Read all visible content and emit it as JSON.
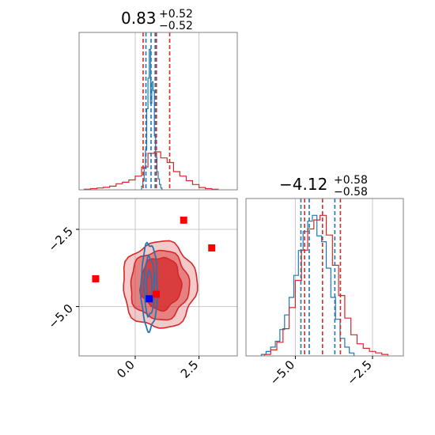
{
  "chart_data": {
    "type": "corner",
    "grid": true,
    "colors": {
      "posterior_a": "#1f77b4",
      "posterior_b": "#d62728",
      "marker_red": "#ff0000",
      "marker_blue": "#0000ff"
    },
    "panels": {
      "param1_hist": {
        "title": {
          "median": "0.83",
          "upper": "+0.52",
          "lower": "−0.52"
        },
        "xlim": [
          -2.2,
          4.0
        ],
        "gridlines_x": [
          0.0,
          2.5
        ],
        "quantile_lines_red": [
          0.31,
          0.83,
          1.35
        ],
        "quantile_lines_blue": [
          0.42,
          0.62,
          0.78
        ],
        "blue_hist": {
          "edges": [
            0.25,
            0.3,
            0.35,
            0.4,
            0.45,
            0.5,
            0.55,
            0.6,
            0.65,
            0.7,
            0.75,
            0.8,
            0.85,
            0.9,
            0.95,
            1.0,
            1.05
          ],
          "counts": [
            2,
            5,
            12,
            22,
            45,
            62,
            78,
            48,
            60,
            55,
            30,
            18,
            10,
            6,
            3,
            1
          ]
        },
        "red_hist": {
          "edges": [
            -2.0,
            -1.75,
            -1.5,
            -1.25,
            -1.0,
            -0.75,
            -0.5,
            -0.25,
            0.0,
            0.25,
            0.5,
            0.75,
            1.0,
            1.25,
            1.5,
            1.75,
            2.0,
            2.25,
            2.5,
            2.75,
            3.0,
            3.25
          ],
          "counts": [
            0.4,
            0.8,
            1.2,
            1.6,
            2.4,
            4,
            5,
            6.5,
            9,
            15,
            24,
            25,
            21,
            18,
            12,
            9,
            6,
            3.5,
            1.5,
            0.8,
            0.4
          ]
        }
      },
      "param2_hist": {
        "title": {
          "median": "−4.12",
          "upper": "+0.58",
          "lower": "−0.58"
        },
        "xlim": [
          -6.6,
          -1.5
        ],
        "tick_values": [
          -5.0,
          -2.5
        ],
        "tick_labels": [
          "−5.0",
          "−2.5"
        ],
        "quantile_lines_red": [
          -4.7,
          -4.12,
          -3.54
        ],
        "quantile_lines_blue": [
          -4.82,
          -4.55,
          -3.72
        ],
        "blue_hist": {
          "edges": [
            -6.1,
            -5.95,
            -5.8,
            -5.65,
            -5.5,
            -5.35,
            -5.2,
            -5.05,
            -4.9,
            -4.75,
            -4.6,
            -4.45,
            -4.3,
            -4.15,
            -4.0,
            -3.85,
            -3.7,
            -3.55,
            -3.4,
            -3.25,
            -3.1
          ],
          "counts": [
            1,
            3,
            6,
            10,
            18,
            28,
            40,
            55,
            72,
            85,
            92,
            96,
            82,
            78,
            60,
            40,
            25,
            12,
            6,
            2
          ]
        },
        "red_hist": {
          "edges": [
            -6.0,
            -5.8,
            -5.6,
            -5.4,
            -5.2,
            -5.0,
            -4.8,
            -4.6,
            -4.4,
            -4.2,
            -4.0,
            -3.8,
            -3.6,
            -3.4,
            -3.2,
            -3.0,
            -2.8,
            -2.6,
            -2.4,
            -2.2,
            -2.0
          ],
          "counts": [
            1,
            4,
            9,
            18,
            32,
            50,
            70,
            84,
            90,
            93,
            80,
            60,
            40,
            25,
            14,
            8,
            5,
            3,
            2,
            1
          ]
        }
      },
      "scatter_2d": {
        "xlim": [
          -2.2,
          4.0
        ],
        "ylim": [
          -6.6,
          -1.5
        ],
        "x_tick_values": [
          0.0,
          2.5
        ],
        "x_tick_labels": [
          "0.0",
          "2.5"
        ],
        "y_tick_values": [
          -2.5,
          -5.0
        ],
        "y_tick_labels": [
          "−2.5",
          "−5.0"
        ],
        "red_contours": [
          {
            "cx": 0.95,
            "cy": -4.3,
            "rx": 1.45,
            "ry": 1.4
          },
          {
            "cx": 0.95,
            "cy": -4.3,
            "rx": 1.15,
            "ry": 1.12
          },
          {
            "cx": 1.0,
            "cy": -4.25,
            "rx": 0.8,
            "ry": 0.85
          }
        ],
        "blue_contours": [
          {
            "cx": 0.55,
            "cy": -4.35,
            "rx": 0.32,
            "ry": 1.4
          },
          {
            "cx": 0.55,
            "cy": -4.35,
            "rx": 0.2,
            "ry": 0.95
          },
          {
            "cx": 0.55,
            "cy": -4.35,
            "rx": 0.1,
            "ry": 0.5
          }
        ],
        "red_markers": [
          {
            "x": 1.9,
            "y": -2.2
          },
          {
            "x": 3.0,
            "y": -3.1
          },
          {
            "x": -1.55,
            "y": -4.1
          },
          {
            "x": 0.82,
            "y": -4.6
          }
        ],
        "blue_markers": [
          {
            "x": 0.55,
            "y": -4.75
          }
        ]
      }
    }
  }
}
